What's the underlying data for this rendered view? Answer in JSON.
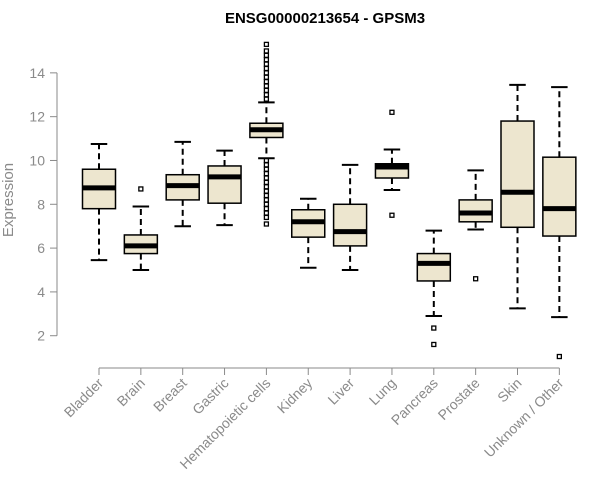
{
  "chart_data": {
    "type": "box",
    "title": "ENSG00000213654 - GPSM3",
    "xlabel": "",
    "ylabel": "Expression",
    "ylim": [
      0.8,
      15.5
    ],
    "yticks": [
      2,
      4,
      6,
      8,
      10,
      12,
      14
    ],
    "box_fill": "#ede6cf",
    "categories": [
      "Bladder",
      "Brain",
      "Breast",
      "Gastric",
      "Hematopoietic cells",
      "Kidney",
      "Liver",
      "Lung",
      "Pancreas",
      "Prostate",
      "Skin",
      "Unknown / Other"
    ],
    "boxes": [
      {
        "q1": 7.8,
        "median": 8.75,
        "q3": 9.6,
        "whisker_low": 5.45,
        "whisker_high": 10.75,
        "outliers": []
      },
      {
        "q1": 5.75,
        "median": 6.1,
        "q3": 6.6,
        "whisker_low": 5.0,
        "whisker_high": 7.9,
        "outliers": [
          8.7
        ]
      },
      {
        "q1": 8.2,
        "median": 8.85,
        "q3": 9.35,
        "whisker_low": 7.0,
        "whisker_high": 10.85,
        "outliers": []
      },
      {
        "q1": 8.05,
        "median": 9.25,
        "q3": 9.75,
        "whisker_low": 7.05,
        "whisker_high": 10.45,
        "outliers": []
      },
      {
        "q1": 11.05,
        "median": 11.4,
        "q3": 11.7,
        "whisker_low": 10.1,
        "whisker_high": 12.65,
        "outliers": [
          12.8,
          13.0,
          13.2,
          13.4,
          13.6,
          13.8,
          14.0,
          14.2,
          14.4,
          14.6,
          14.8,
          15.0,
          15.3,
          10.0,
          9.8,
          9.6,
          9.4,
          9.2,
          9.0,
          8.8,
          8.6,
          8.4,
          8.2,
          8.0,
          7.8,
          7.6,
          7.4,
          7.1
        ]
      },
      {
        "q1": 6.5,
        "median": 7.2,
        "q3": 7.75,
        "whisker_low": 5.1,
        "whisker_high": 8.25,
        "outliers": []
      },
      {
        "q1": 6.1,
        "median": 6.75,
        "q3": 8.0,
        "whisker_low": 5.0,
        "whisker_high": 9.8,
        "outliers": []
      },
      {
        "q1": 9.2,
        "median": 9.7,
        "q3": 9.85,
        "whisker_low": 8.65,
        "whisker_high": 10.5,
        "outliers": [
          12.2,
          7.5
        ]
      },
      {
        "q1": 4.5,
        "median": 5.3,
        "q3": 5.75,
        "whisker_low": 2.9,
        "whisker_high": 6.8,
        "outliers": [
          2.35,
          1.6
        ]
      },
      {
        "q1": 7.2,
        "median": 7.6,
        "q3": 8.2,
        "whisker_low": 6.85,
        "whisker_high": 9.55,
        "outliers": [
          4.6
        ]
      },
      {
        "q1": 6.95,
        "median": 8.55,
        "q3": 11.8,
        "whisker_low": 3.25,
        "whisker_high": 13.45,
        "outliers": []
      },
      {
        "q1": 6.55,
        "median": 7.8,
        "q3": 10.15,
        "whisker_low": 2.85,
        "whisker_high": 13.35,
        "outliers": [
          1.05
        ]
      }
    ]
  }
}
